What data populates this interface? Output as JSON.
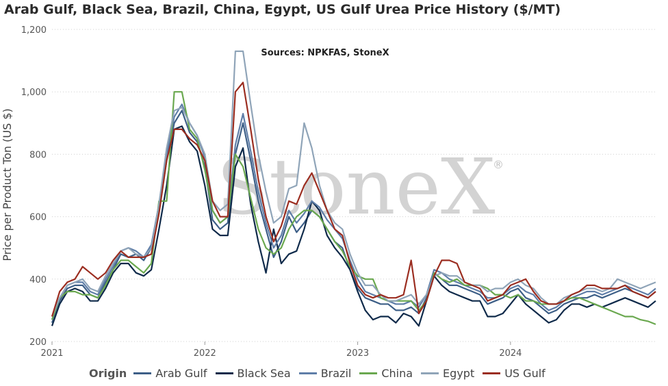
{
  "title": "Arab Gulf, Black Sea, Brazil, China, Egypt, US Gulf Urea Price History ($/MT)",
  "watermark": "StoneX",
  "watermark_mark": "®",
  "chart_data": {
    "type": "line",
    "subtitle": "Sources: NPKFAS, StoneX",
    "ylabel": "Price per Product Ton (US $)",
    "ylim": [
      200,
      1200
    ],
    "yticks": [
      200,
      400,
      600,
      800,
      1000,
      1200
    ],
    "ytick_labels": [
      "200",
      "400",
      "600",
      "800",
      "1,000",
      "1,200"
    ],
    "xlim": [
      2021.0,
      2024.95
    ],
    "xticks": [
      2021,
      2022,
      2023,
      2024
    ],
    "xtick_labels": [
      "2021",
      "2022",
      "2023",
      "2024"
    ],
    "grid": "horizontal-dotted",
    "legend_title": "Origin",
    "legend_position": "bottom",
    "series": [
      {
        "name": "Arab Gulf",
        "color": "#3d5f87",
        "x": [
          2021.0,
          2021.05,
          2021.1,
          2021.15,
          2021.2,
          2021.25,
          2021.3,
          2021.35,
          2021.4,
          2021.45,
          2021.5,
          2021.55,
          2021.6,
          2021.65,
          2021.7,
          2021.75,
          2021.8,
          2021.85,
          2021.9,
          2021.95,
          2022.0,
          2022.05,
          2022.1,
          2022.15,
          2022.2,
          2022.25,
          2022.3,
          2022.35,
          2022.4,
          2022.45,
          2022.5,
          2022.55,
          2022.6,
          2022.65,
          2022.7,
          2022.75,
          2022.8,
          2022.85,
          2022.9,
          2022.95,
          2023.0,
          2023.05,
          2023.1,
          2023.15,
          2023.2,
          2023.25,
          2023.3,
          2023.35,
          2023.4,
          2023.45,
          2023.5,
          2023.55,
          2023.6,
          2023.65,
          2023.7,
          2023.75,
          2023.8,
          2023.85,
          2023.9,
          2023.95,
          2024.0,
          2024.05,
          2024.1,
          2024.15,
          2024.2,
          2024.25,
          2024.3,
          2024.35,
          2024.4,
          2024.45,
          2024.5,
          2024.55,
          2024.6,
          2024.65,
          2024.7,
          2024.75,
          2024.8,
          2024.85,
          2024.9,
          2024.95
        ],
        "y": [
          260,
          330,
          370,
          380,
          380,
          350,
          340,
          390,
          430,
          480,
          470,
          480,
          460,
          500,
          620,
          780,
          900,
          940,
          870,
          840,
          760,
          590,
          560,
          580,
          800,
          900,
          780,
          650,
          560,
          470,
          520,
          600,
          550,
          580,
          620,
          600,
          560,
          520,
          500,
          430,
          370,
          340,
          330,
          320,
          320,
          300,
          300,
          310,
          290,
          340,
          420,
          400,
          380,
          380,
          370,
          360,
          350,
          320,
          330,
          340,
          360,
          370,
          340,
          330,
          310,
          290,
          300,
          320,
          330,
          340,
          340,
          350,
          340,
          350,
          360,
          370,
          360,
          350,
          340,
          360
        ]
      },
      {
        "name": "Black Sea",
        "color": "#0f2a4a",
        "x": [
          2021.0,
          2021.05,
          2021.1,
          2021.15,
          2021.2,
          2021.25,
          2021.3,
          2021.35,
          2021.4,
          2021.45,
          2021.5,
          2021.55,
          2021.6,
          2021.65,
          2021.7,
          2021.75,
          2021.8,
          2021.85,
          2021.9,
          2021.95,
          2022.0,
          2022.05,
          2022.1,
          2022.15,
          2022.2,
          2022.25,
          2022.3,
          2022.35,
          2022.4,
          2022.45,
          2022.5,
          2022.55,
          2022.6,
          2022.65,
          2022.7,
          2022.75,
          2022.8,
          2022.85,
          2022.9,
          2022.95,
          2023.0,
          2023.05,
          2023.1,
          2023.15,
          2023.2,
          2023.25,
          2023.3,
          2023.35,
          2023.4,
          2023.45,
          2023.5,
          2023.55,
          2023.6,
          2023.65,
          2023.7,
          2023.75,
          2023.8,
          2023.85,
          2023.9,
          2023.95,
          2024.0,
          2024.05,
          2024.1,
          2024.15,
          2024.2,
          2024.25,
          2024.3,
          2024.35,
          2024.4,
          2024.45,
          2024.5,
          2024.55,
          2024.6,
          2024.65,
          2024.7,
          2024.75,
          2024.8,
          2024.85,
          2024.9,
          2024.95
        ],
        "y": [
          250,
          320,
          360,
          370,
          360,
          330,
          330,
          370,
          420,
          450,
          450,
          420,
          410,
          430,
          560,
          700,
          880,
          890,
          840,
          810,
          700,
          560,
          540,
          540,
          760,
          820,
          640,
          520,
          420,
          560,
          450,
          480,
          490,
          560,
          650,
          620,
          540,
          500,
          470,
          430,
          360,
          300,
          270,
          280,
          280,
          260,
          290,
          280,
          250,
          330,
          410,
          380,
          360,
          350,
          340,
          330,
          330,
          280,
          280,
          290,
          320,
          350,
          320,
          300,
          280,
          260,
          270,
          300,
          320,
          320,
          310,
          320,
          310,
          320,
          330,
          340,
          330,
          320,
          310,
          330
        ]
      },
      {
        "name": "Brazil",
        "color": "#5f7ea8",
        "x": [
          2021.0,
          2021.05,
          2021.1,
          2021.15,
          2021.2,
          2021.25,
          2021.3,
          2021.35,
          2021.4,
          2021.45,
          2021.5,
          2021.55,
          2021.6,
          2021.65,
          2021.7,
          2021.75,
          2021.8,
          2021.85,
          2021.9,
          2021.95,
          2022.0,
          2022.05,
          2022.1,
          2022.15,
          2022.2,
          2022.25,
          2022.3,
          2022.35,
          2022.4,
          2022.45,
          2022.5,
          2022.55,
          2022.6,
          2022.65,
          2022.7,
          2022.75,
          2022.8,
          2022.85,
          2022.9,
          2022.95,
          2023.0,
          2023.05,
          2023.1,
          2023.15,
          2023.2,
          2023.25,
          2023.3,
          2023.35,
          2023.4,
          2023.45,
          2023.5,
          2023.55,
          2023.6,
          2023.65,
          2023.7,
          2023.75,
          2023.8,
          2023.85,
          2023.9,
          2023.95,
          2024.0,
          2024.05,
          2024.1,
          2024.15,
          2024.2,
          2024.25,
          2024.3,
          2024.35,
          2024.4,
          2024.45,
          2024.5,
          2024.55,
          2024.6,
          2024.65,
          2024.7,
          2024.75,
          2024.8,
          2024.85,
          2024.9,
          2024.95
        ],
        "y": [
          270,
          340,
          380,
          390,
          390,
          360,
          350,
          400,
          440,
          490,
          500,
          490,
          470,
          510,
          640,
          800,
          920,
          960,
          900,
          860,
          790,
          620,
          580,
          600,
          830,
          930,
          810,
          680,
          580,
          500,
          540,
          620,
          580,
          610,
          650,
          630,
          590,
          560,
          530,
          460,
          400,
          360,
          350,
          340,
          330,
          320,
          320,
          330,
          310,
          350,
          430,
          420,
          400,
          390,
          380,
          370,
          360,
          340,
          340,
          350,
          370,
          380,
          360,
          350,
          320,
          300,
          310,
          330,
          340,
          350,
          360,
          360,
          350,
          360,
          370,
          380,
          370,
          360,
          350,
          370
        ]
      },
      {
        "name": "China",
        "color": "#6aa84f",
        "x": [
          2021.0,
          2021.05,
          2021.1,
          2021.15,
          2021.2,
          2021.25,
          2021.3,
          2021.35,
          2021.4,
          2021.45,
          2021.5,
          2021.55,
          2021.6,
          2021.65,
          2021.7,
          2021.75,
          2021.8,
          2021.85,
          2021.9,
          2021.95,
          2022.0,
          2022.05,
          2022.1,
          2022.15,
          2022.2,
          2022.25,
          2022.3,
          2022.35,
          2022.4,
          2022.45,
          2022.5,
          2022.55,
          2022.6,
          2022.65,
          2022.7,
          2022.75,
          2022.8,
          2022.85,
          2022.9,
          2022.95,
          2023.0,
          2023.05,
          2023.1,
          2023.15,
          2023.2,
          2023.25,
          2023.3,
          2023.35,
          2023.4,
          2023.45,
          2023.5,
          2023.55,
          2023.6,
          2023.65,
          2023.7,
          2023.75,
          2023.8,
          2023.85,
          2023.9,
          2023.95,
          2024.0,
          2024.05,
          2024.1,
          2024.15,
          2024.2,
          2024.25,
          2024.3,
          2024.35,
          2024.4,
          2024.45,
          2024.5,
          2024.55,
          2024.6,
          2024.65,
          2024.7,
          2024.75,
          2024.8,
          2024.85,
          2024.9,
          2024.95
        ],
        "y": [
          270,
          340,
          360,
          360,
          350,
          350,
          340,
          380,
          430,
          460,
          460,
          440,
          420,
          450,
          650,
          650,
          1000,
          1000,
          880,
          850,
          750,
          620,
          580,
          600,
          800,
          760,
          660,
          560,
          500,
          480,
          500,
          560,
          600,
          620,
          620,
          600,
          560,
          520,
          490,
          440,
          410,
          400,
          400,
          340,
          330,
          330,
          330,
          330,
          300,
          330,
          420,
          400,
          390,
          400,
          380,
          380,
          380,
          370,
          350,
          350,
          340,
          350,
          330,
          330,
          320,
          320,
          320,
          330,
          340,
          340,
          330,
          320,
          310,
          300,
          290,
          280,
          280,
          270,
          265,
          255
        ]
      },
      {
        "name": "Egypt",
        "color": "#8fa4b8",
        "x": [
          2021.0,
          2021.05,
          2021.1,
          2021.15,
          2021.2,
          2021.25,
          2021.3,
          2021.35,
          2021.4,
          2021.45,
          2021.5,
          2021.55,
          2021.6,
          2021.65,
          2021.7,
          2021.75,
          2021.8,
          2021.85,
          2021.9,
          2021.95,
          2022.0,
          2022.05,
          2022.1,
          2022.15,
          2022.2,
          2022.25,
          2022.3,
          2022.35,
          2022.4,
          2022.45,
          2022.5,
          2022.55,
          2022.6,
          2022.65,
          2022.7,
          2022.75,
          2022.8,
          2022.85,
          2022.9,
          2022.95,
          2023.0,
          2023.05,
          2023.1,
          2023.15,
          2023.2,
          2023.25,
          2023.3,
          2023.35,
          2023.4,
          2023.45,
          2023.5,
          2023.55,
          2023.6,
          2023.65,
          2023.7,
          2023.75,
          2023.8,
          2023.85,
          2023.9,
          2023.95,
          2024.0,
          2024.05,
          2024.1,
          2024.15,
          2024.2,
          2024.25,
          2024.3,
          2024.35,
          2024.4,
          2024.45,
          2024.5,
          2024.55,
          2024.6,
          2024.65,
          2024.7,
          2024.75,
          2024.8,
          2024.85,
          2024.9,
          2024.95
        ],
        "y": [
          280,
          340,
          380,
          390,
          400,
          370,
          360,
          410,
          450,
          490,
          500,
          480,
          470,
          500,
          640,
          820,
          940,
          950,
          900,
          860,
          800,
          650,
          620,
          640,
          1130,
          1130,
          960,
          800,
          680,
          580,
          600,
          690,
          700,
          900,
          820,
          700,
          620,
          580,
          560,
          480,
          420,
          380,
          380,
          350,
          330,
          330,
          340,
          350,
          320,
          350,
          410,
          420,
          410,
          410,
          390,
          380,
          380,
          360,
          370,
          370,
          390,
          400,
          380,
          370,
          340,
          320,
          320,
          340,
          350,
          360,
          370,
          370,
          360,
          370,
          400,
          390,
          380,
          370,
          380,
          390
        ]
      },
      {
        "name": "US Gulf",
        "color": "#9b2d20",
        "x": [
          2021.0,
          2021.05,
          2021.1,
          2021.15,
          2021.2,
          2021.25,
          2021.3,
          2021.35,
          2021.4,
          2021.45,
          2021.5,
          2021.55,
          2021.6,
          2021.65,
          2021.7,
          2021.75,
          2021.8,
          2021.85,
          2021.9,
          2021.95,
          2022.0,
          2022.05,
          2022.1,
          2022.15,
          2022.2,
          2022.25,
          2022.3,
          2022.35,
          2022.4,
          2022.45,
          2022.5,
          2022.55,
          2022.6,
          2022.65,
          2022.7,
          2022.75,
          2022.8,
          2022.85,
          2022.9,
          2022.95,
          2023.0,
          2023.05,
          2023.1,
          2023.15,
          2023.2,
          2023.25,
          2023.3,
          2023.35,
          2023.4,
          2023.45,
          2023.5,
          2023.55,
          2023.6,
          2023.65,
          2023.7,
          2023.75,
          2023.8,
          2023.85,
          2023.9,
          2023.95,
          2024.0,
          2024.05,
          2024.1,
          2024.15,
          2024.2,
          2024.25,
          2024.3,
          2024.35,
          2024.4,
          2024.45,
          2024.5,
          2024.55,
          2024.6,
          2024.65,
          2024.7,
          2024.75,
          2024.8,
          2024.85,
          2024.9,
          2024.95
        ],
        "y": [
          280,
          360,
          390,
          400,
          440,
          420,
          400,
          420,
          460,
          490,
          470,
          470,
          470,
          480,
          610,
          780,
          880,
          880,
          850,
          830,
          780,
          650,
          600,
          600,
          1000,
          1030,
          880,
          720,
          600,
          520,
          570,
          650,
          640,
          700,
          740,
          680,
          620,
          560,
          540,
          450,
          380,
          350,
          340,
          350,
          340,
          340,
          350,
          460,
          290,
          330,
          410,
          460,
          460,
          450,
          390,
          380,
          370,
          330,
          340,
          350,
          380,
          390,
          400,
          360,
          330,
          320,
          320,
          330,
          350,
          360,
          380,
          380,
          370,
          370,
          370,
          380,
          360,
          350,
          340,
          360
        ]
      }
    ]
  }
}
